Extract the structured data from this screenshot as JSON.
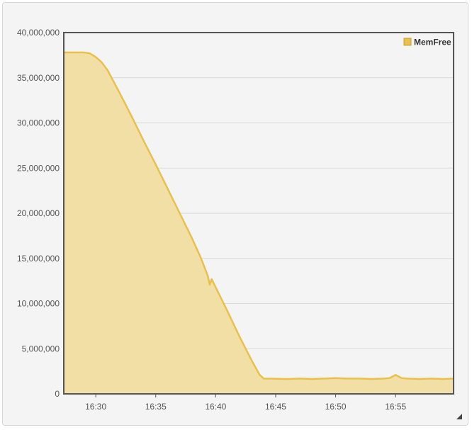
{
  "chart_data": {
    "type": "area",
    "title": "",
    "xlabel": "",
    "ylabel": "",
    "x_ticks": [
      "16:30",
      "16:35",
      "16:40",
      "16:45",
      "16:50",
      "16:55"
    ],
    "y_ticks": [
      "0",
      "5,000,000",
      "10,000,000",
      "15,000,000",
      "20,000,000",
      "25,000,000",
      "30,000,000",
      "35,000,000",
      "40,000,000"
    ],
    "ylim": [
      0,
      40000000
    ],
    "xlim": [
      "16:27:20",
      "16:59:50"
    ],
    "grid": true,
    "legend_position": "top-right",
    "series": [
      {
        "name": "MemFree",
        "color": "#e8c04a",
        "fill_color": "#f2dfa6",
        "points": [
          [
            "16:27:20",
            37800000
          ],
          [
            "16:29:00",
            37800000
          ],
          [
            "16:29:30",
            37700000
          ],
          [
            "16:30:00",
            37300000
          ],
          [
            "16:30:30",
            36700000
          ],
          [
            "16:31:00",
            35800000
          ],
          [
            "16:32:00",
            33300000
          ],
          [
            "16:33:00",
            30700000
          ],
          [
            "16:34:00",
            28000000
          ],
          [
            "16:35:00",
            25400000
          ],
          [
            "16:36:00",
            22700000
          ],
          [
            "16:37:00",
            20000000
          ],
          [
            "16:38:00",
            17300000
          ],
          [
            "16:38:45",
            15100000
          ],
          [
            "16:39:20",
            13100000
          ],
          [
            "16:39:30",
            12100000
          ],
          [
            "16:39:40",
            12700000
          ],
          [
            "16:40:00",
            11800000
          ],
          [
            "16:41:00",
            9100000
          ],
          [
            "16:42:00",
            6300000
          ],
          [
            "16:43:00",
            3700000
          ],
          [
            "16:43:40",
            2100000
          ],
          [
            "16:44:00",
            1700000
          ],
          [
            "16:46:00",
            1650000
          ],
          [
            "16:47:00",
            1700000
          ],
          [
            "16:48:00",
            1650000
          ],
          [
            "16:49:00",
            1700000
          ],
          [
            "16:50:00",
            1750000
          ],
          [
            "16:51:00",
            1700000
          ],
          [
            "16:52:00",
            1700000
          ],
          [
            "16:53:00",
            1650000
          ],
          [
            "16:54:00",
            1700000
          ],
          [
            "16:54:30",
            1750000
          ],
          [
            "16:55:00",
            2100000
          ],
          [
            "16:55:30",
            1750000
          ],
          [
            "16:56:00",
            1700000
          ],
          [
            "16:57:00",
            1650000
          ],
          [
            "16:58:00",
            1700000
          ],
          [
            "16:59:00",
            1650000
          ],
          [
            "16:59:50",
            1700000
          ]
        ]
      }
    ]
  }
}
